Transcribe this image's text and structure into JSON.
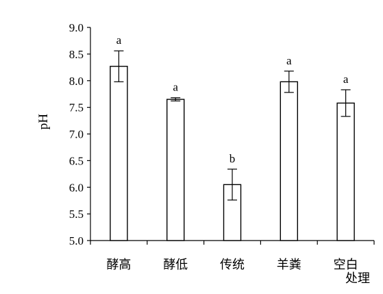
{
  "chart_data": {
    "type": "bar",
    "title": "",
    "xlabel": "处理",
    "ylabel": "pH",
    "ylim": [
      5.0,
      9.0
    ],
    "yticks": [
      "5.0",
      "5.5",
      "6.0",
      "6.5",
      "7.0",
      "7.5",
      "8.0",
      "8.5",
      "9.0"
    ],
    "categories": [
      "酵高",
      "酵低",
      "传统",
      "羊粪",
      "空白"
    ],
    "values": [
      8.27,
      7.65,
      6.05,
      7.98,
      7.58
    ],
    "errors": [
      0.29,
      0.03,
      0.29,
      0.2,
      0.25
    ],
    "significance": [
      "a",
      "a",
      "b",
      "a",
      "a"
    ],
    "grid": false,
    "legend": "none",
    "colors": {
      "bar_fill": "#ffffff",
      "stroke": "#000000"
    }
  }
}
